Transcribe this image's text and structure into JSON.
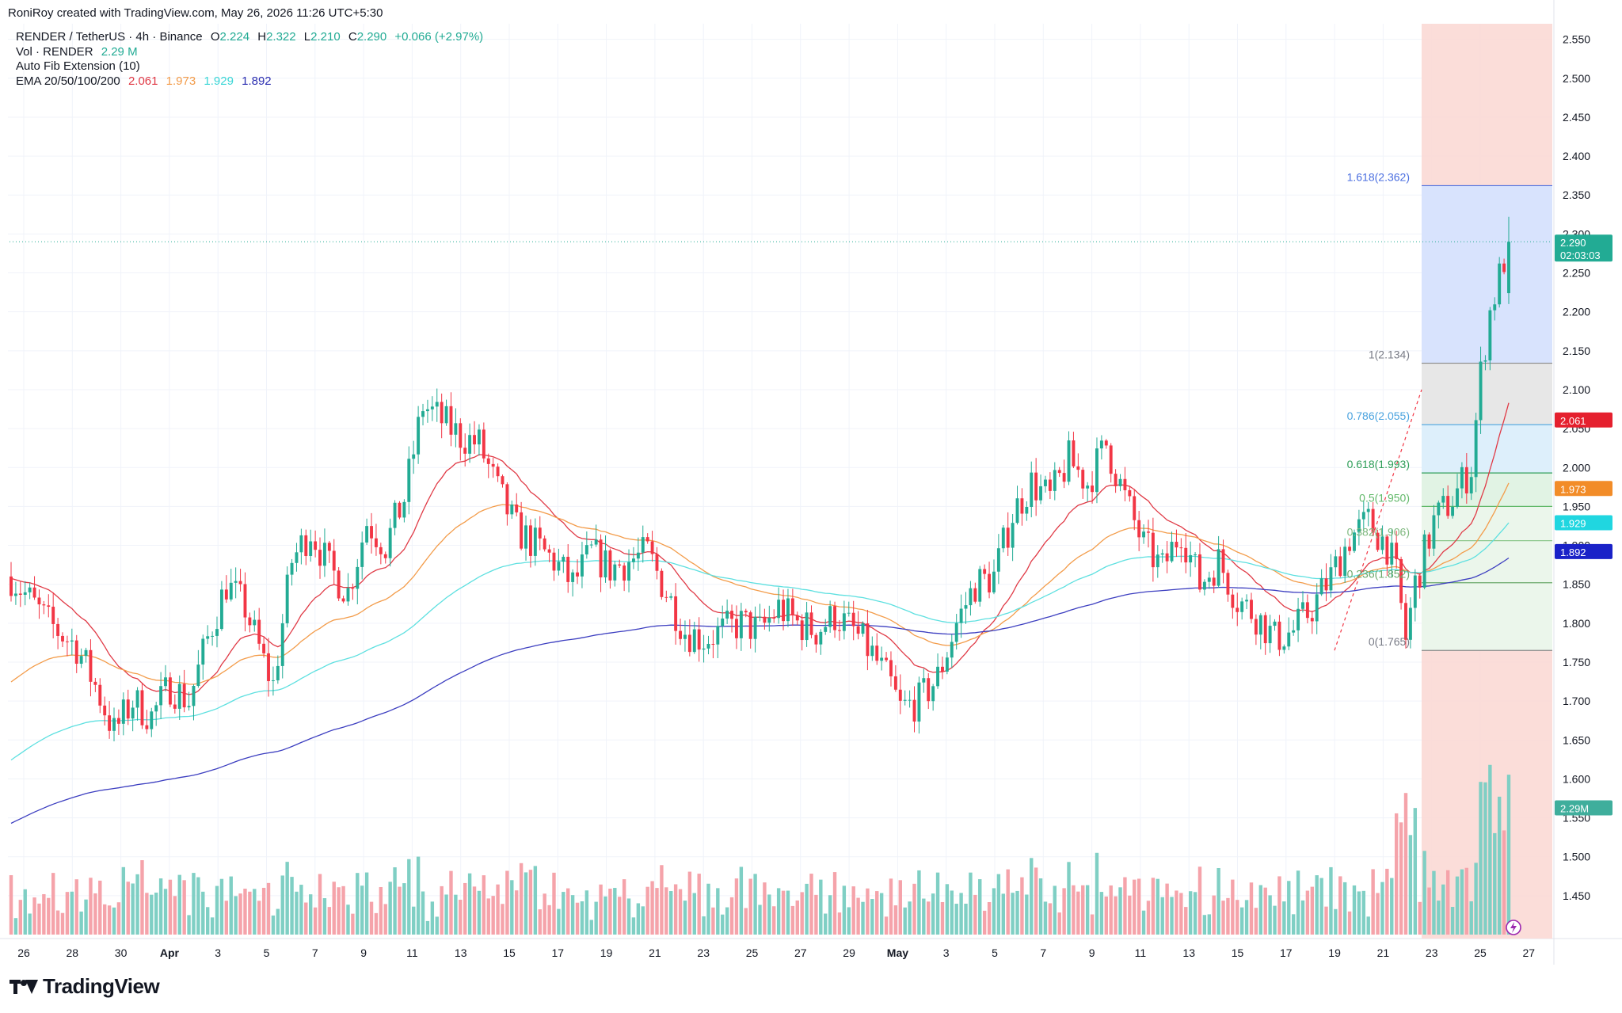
{
  "header": {
    "attribution": "RoniRoy created with TradingView.com, May 26, 2026 11:26 UTC+5:30"
  },
  "legend": {
    "symbol": "RENDER / TetherUS · 4h · Binance",
    "ohlc": {
      "o_label": "O",
      "o": "2.224",
      "h_label": "H",
      "h": "2.322",
      "l_label": "L",
      "l": "2.210",
      "c_label": "C",
      "c": "2.290",
      "change": "+0.066 (+2.97%)"
    },
    "volume": {
      "label": "Vol · RENDER",
      "value": "2.29 M"
    },
    "fib": {
      "label": "Auto Fib Extension (10)"
    },
    "ema": {
      "label": "EMA 20/50/100/200",
      "v20": "2.061",
      "v50": "1.973",
      "v100": "1.929",
      "v200": "1.892"
    }
  },
  "brand": {
    "name": "TradingView"
  },
  "colors": {
    "up": "#22ab94",
    "down": "#f23645",
    "up_vol": "#7fcfc4",
    "down_vol": "#f5a3aa",
    "ema20": "#e03a46",
    "ema50": "#f39c4a",
    "ema100": "#5ee0e0",
    "ema200": "#3c3ec0",
    "fib_blue": "#d6e2fd",
    "fib_grey": "#e6e6e6",
    "fib_lightblue": "#dbeefb",
    "fib_green": "#dff2e3",
    "fib_lightgreen": "#eaf6ea",
    "fib_red": "#fbd9d5"
  },
  "chart_data": {
    "type": "candlestick",
    "symbol": "RENDER / TetherUS",
    "interval": "4h",
    "exchange": "Binance",
    "y_axis": {
      "range": [
        1.4,
        2.57
      ],
      "ticks": [
        "1.450",
        "1.500",
        "1.550",
        "1.600",
        "1.650",
        "1.700",
        "1.750",
        "1.800",
        "1.850",
        "1.900",
        "1.950",
        "2.000",
        "2.050",
        "2.100",
        "2.150",
        "2.200",
        "2.250",
        "2.300",
        "2.350",
        "2.400",
        "2.450",
        "2.500",
        "2.550"
      ]
    },
    "x_axis": {
      "ticks": [
        "26",
        "28",
        "30",
        "Apr",
        "3",
        "5",
        "7",
        "9",
        "11",
        "13",
        "15",
        "17",
        "19",
        "21",
        "23",
        "25",
        "27",
        "29",
        "May",
        "3",
        "5",
        "7",
        "9",
        "11",
        "13",
        "15",
        "17",
        "19",
        "21",
        "23",
        "25",
        "27"
      ]
    },
    "grid": true,
    "price_label": {
      "value": "2.290",
      "countdown": "02:03:03"
    },
    "ema_labels": [
      {
        "name": "EMA 20",
        "value": "2.061"
      },
      {
        "name": "EMA 50",
        "value": "1.973"
      },
      {
        "name": "EMA 100",
        "value": "1.929"
      },
      {
        "name": "EMA 200",
        "value": "1.892"
      }
    ],
    "volume_label": "2.29M",
    "fib_levels": [
      {
        "label": "1.618(2.362)",
        "price": 2.362
      },
      {
        "label": "1(2.134)",
        "price": 2.134
      },
      {
        "label": "0.786(2.055)",
        "price": 2.055
      },
      {
        "label": "0.618(1.993)",
        "price": 1.993
      },
      {
        "label": "0.5(1.950)",
        "price": 1.95
      },
      {
        "label": "0.382(1.906)",
        "price": 1.906
      },
      {
        "label": "0.236(1.852)",
        "price": 1.852
      },
      {
        "label": "0(1.765)",
        "price": 1.765
      }
    ],
    "series_keyframes": [
      [
        0,
        1.86
      ],
      [
        8,
        1.8
      ],
      [
        14,
        1.77
      ],
      [
        18,
        1.72
      ],
      [
        22,
        1.66
      ],
      [
        26,
        1.7
      ],
      [
        30,
        1.68
      ],
      [
        34,
        1.72
      ],
      [
        38,
        1.7
      ],
      [
        42,
        1.78
      ],
      [
        46,
        1.85
      ],
      [
        50,
        1.82
      ],
      [
        54,
        1.75
      ],
      [
        56,
        1.72
      ],
      [
        60,
        1.88
      ],
      [
        64,
        1.92
      ],
      [
        68,
        1.87
      ],
      [
        72,
        1.84
      ],
      [
        76,
        1.93
      ],
      [
        80,
        1.9
      ],
      [
        84,
        1.96
      ],
      [
        88,
        2.08
      ],
      [
        92,
        2.06
      ],
      [
        96,
        2.04
      ],
      [
        100,
        2.03
      ],
      [
        104,
        1.97
      ],
      [
        108,
        1.92
      ],
      [
        112,
        1.9
      ],
      [
        116,
        1.88
      ],
      [
        120,
        1.85
      ],
      [
        124,
        1.89
      ],
      [
        128,
        1.87
      ],
      [
        132,
        1.88
      ],
      [
        136,
        1.89
      ],
      [
        140,
        1.84
      ],
      [
        144,
        1.79
      ],
      [
        148,
        1.78
      ],
      [
        152,
        1.79
      ],
      [
        156,
        1.8
      ],
      [
        160,
        1.79
      ],
      [
        164,
        1.82
      ],
      [
        168,
        1.8
      ],
      [
        172,
        1.79
      ],
      [
        176,
        1.81
      ],
      [
        180,
        1.79
      ],
      [
        184,
        1.76
      ],
      [
        188,
        1.72
      ],
      [
        190,
        1.69
      ],
      [
        194,
        1.7
      ],
      [
        198,
        1.73
      ],
      [
        202,
        1.8
      ],
      [
        206,
        1.85
      ],
      [
        210,
        1.86
      ],
      [
        214,
        1.94
      ],
      [
        218,
        1.98
      ],
      [
        222,
        1.96
      ],
      [
        226,
        2.01
      ],
      [
        230,
        1.98
      ],
      [
        234,
        2.03
      ],
      [
        238,
        1.96
      ],
      [
        242,
        1.9
      ],
      [
        246,
        1.87
      ],
      [
        250,
        1.92
      ],
      [
        254,
        1.85
      ],
      [
        258,
        1.88
      ],
      [
        262,
        1.83
      ],
      [
        266,
        1.81
      ],
      [
        270,
        1.78
      ],
      [
        274,
        1.79
      ],
      [
        278,
        1.82
      ],
      [
        282,
        1.86
      ],
      [
        286,
        1.91
      ],
      [
        290,
        1.93
      ],
      [
        294,
        1.9
      ],
      [
        296,
        1.86
      ],
      [
        298,
        1.78
      ],
      [
        300,
        1.85
      ],
      [
        304,
        1.93
      ],
      [
        308,
        1.96
      ],
      [
        312,
        2.0
      ],
      [
        314,
        2.12
      ],
      [
        316,
        2.2
      ],
      [
        320,
        2.29
      ]
    ],
    "last": {
      "open": 2.224,
      "high": 2.322,
      "low": 2.21,
      "close": 2.29
    }
  }
}
